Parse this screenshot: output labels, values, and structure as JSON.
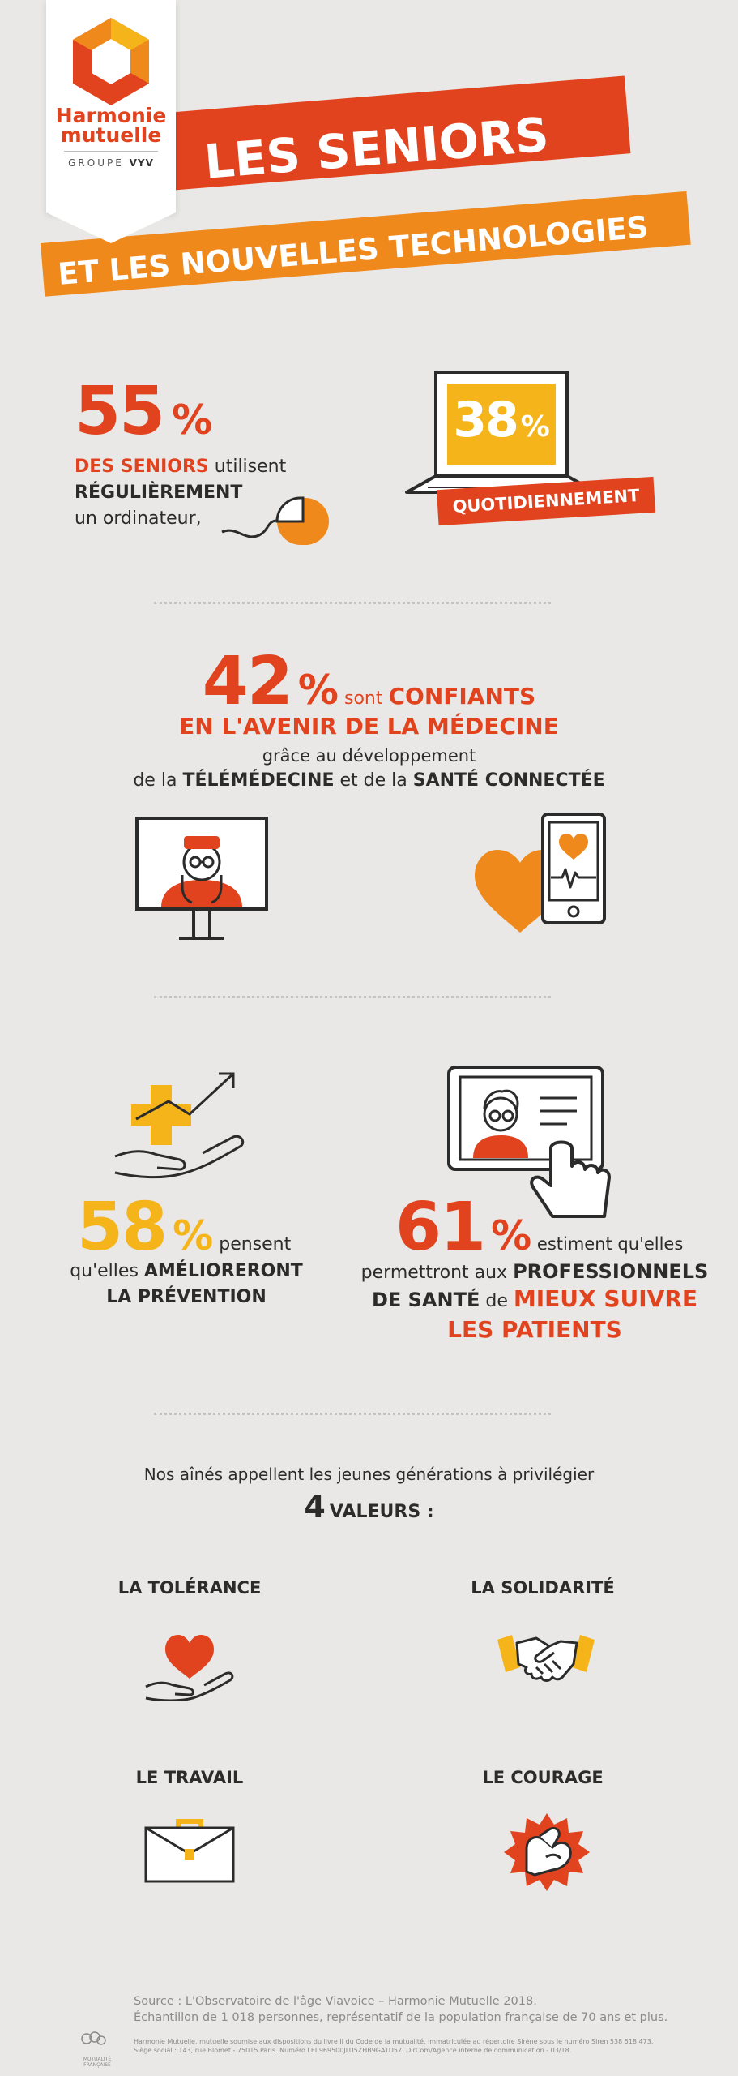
{
  "brand": {
    "name_line1": "Harmonie",
    "name_line2": "mutuelle",
    "group_label": "GROUPE",
    "group_name": "VYV"
  },
  "title": {
    "line1": "LES SENIORS",
    "line2": "ET LES NOUVELLES TECHNOLOGIES"
  },
  "stat1": {
    "percent": "55",
    "percent_sign": "%",
    "part1": "DES SENIORS",
    "part2": " utilisent",
    "part3": "RÉGULIÈREMENT",
    "part4": "un ordinateur,"
  },
  "stat2": {
    "percent": "38",
    "percent_sign": "%",
    "label": "QUOTIDIENNEMENT"
  },
  "stat3": {
    "percent": "42",
    "percent_sign": "%",
    "part1": " sont ",
    "part2": "CONFIANTS",
    "part3": "EN L'AVENIR DE LA MÉDECINE",
    "part4": "grâce au développement",
    "part5": "de la ",
    "part6": "TÉLÉMÉDECINE",
    "part7": " et de la ",
    "part8": "SANTÉ CONNECTÉE"
  },
  "stat4": {
    "percent": "58",
    "percent_sign": "%",
    "part1": " pensent",
    "part2": "qu'elles ",
    "part3": "AMÉLIORERONT",
    "part4": "LA PRÉVENTION"
  },
  "stat5": {
    "percent": "61",
    "percent_sign": "%",
    "part1": " estiment qu'elles",
    "part2": "permettront aux ",
    "part3": "PROFESSIONNELS",
    "part4": "DE SANTÉ",
    "part5": " de ",
    "part6": "MIEUX SUIVRE",
    "part7": "LES PATIENTS"
  },
  "values": {
    "intro": "Nos aînés appellent les jeunes générations à privilégier",
    "count": "4",
    "count_label": "VALEURS :",
    "items": [
      {
        "label": "LA TOLÉRANCE",
        "icon": "heart-hand-icon"
      },
      {
        "label": "LA SOLIDARITÉ",
        "icon": "handshake-icon"
      },
      {
        "label": "LE TRAVAIL",
        "icon": "briefcase-icon"
      },
      {
        "label": "LE COURAGE",
        "icon": "muscle-arm-icon"
      }
    ]
  },
  "footer": {
    "source_line1": "Source :  L'Observatoire de l'âge Viavoice – Harmonie Mutuelle 2018.",
    "source_line2": "Échantillon de 1 018 personnes, représentatif de la population française de 70 ans et plus.",
    "legal_line1": "Harmonie Mutuelle, mutuelle soumise aux dispositions du livre II du Code de la mutualité, immatriculée au répertoire Sirène sous le numéro Siren 538 518 473.",
    "legal_line2": "Siège social : 143, rue Blomet - 75015 Paris. Numéro LEI 969500JLU5ZHB9GATD57. DirCom/Agence interne de communication - 03/18.",
    "mutualite_label": "MUTUALITÉ FRANÇAISE"
  },
  "colors": {
    "red": "#e2431f",
    "orange": "#f0891c",
    "yellow": "#f5b41a",
    "dark": "#2b2b2b",
    "background": "#e9e8e6"
  }
}
